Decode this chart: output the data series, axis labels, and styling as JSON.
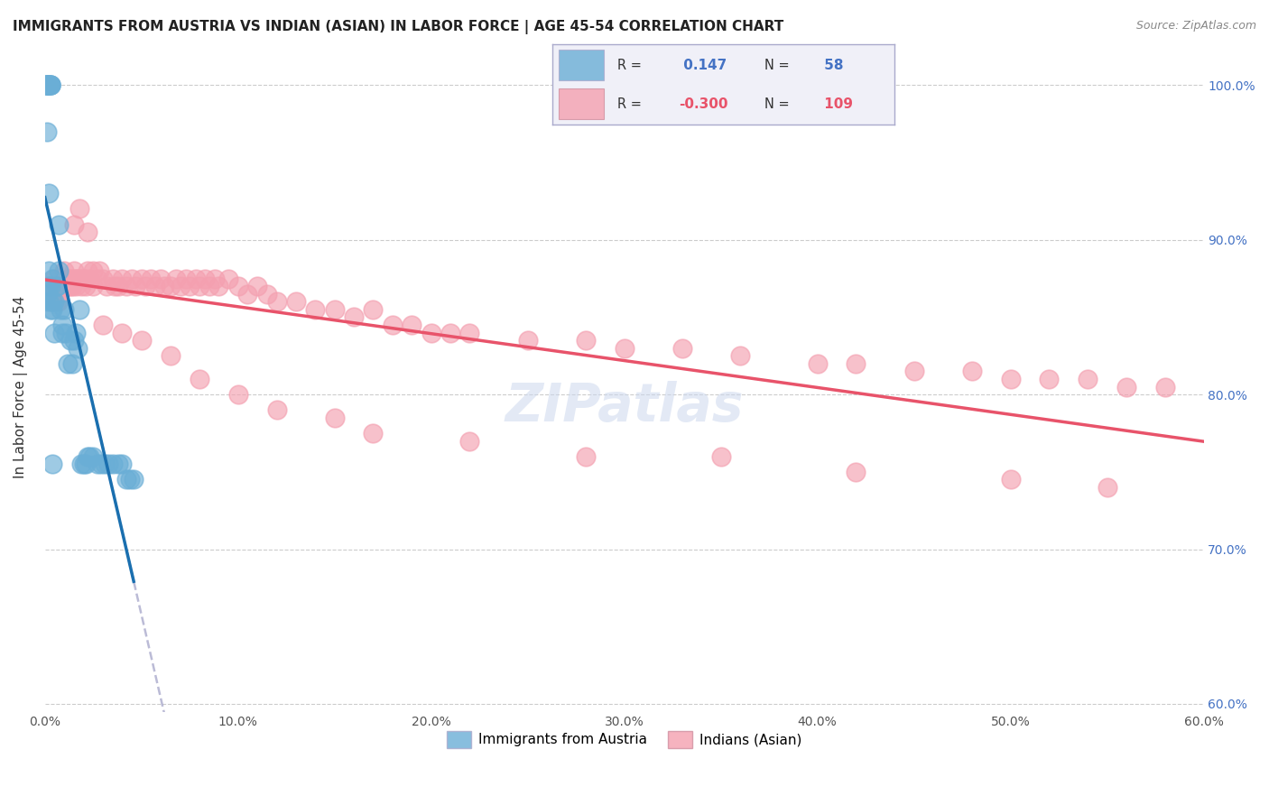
{
  "title": "IMMIGRANTS FROM AUSTRIA VS INDIAN (ASIAN) IN LABOR FORCE | AGE 45-54 CORRELATION CHART",
  "source": "Source: ZipAtlas.com",
  "ylabel": "In Labor Force | Age 45-54",
  "ylabel_right_ticks": [
    "100.0%",
    "90.0%",
    "80.0%",
    "70.0%",
    "60.0%"
  ],
  "ylabel_right_vals": [
    1.0,
    0.9,
    0.8,
    0.7,
    0.6
  ],
  "xlim": [
    0.0,
    0.6
  ],
  "ylim": [
    0.595,
    1.015
  ],
  "austria_r": 0.147,
  "austria_n": 58,
  "indian_r": -0.3,
  "indian_n": 109,
  "austria_color": "#6aaed6",
  "indian_color": "#f4a0b0",
  "austria_line_color": "#1a6faf",
  "indian_line_color": "#e8536a",
  "austria_x": [
    0.001,
    0.001,
    0.001,
    0.001,
    0.001,
    0.001,
    0.001,
    0.002,
    0.002,
    0.002,
    0.002,
    0.002,
    0.003,
    0.003,
    0.003,
    0.003,
    0.004,
    0.004,
    0.004,
    0.005,
    0.005,
    0.006,
    0.006,
    0.007,
    0.007,
    0.008,
    0.009,
    0.009,
    0.01,
    0.011,
    0.012,
    0.013,
    0.014,
    0.015,
    0.016,
    0.017,
    0.018,
    0.019,
    0.02,
    0.021,
    0.022,
    0.023,
    0.025,
    0.027,
    0.029,
    0.031,
    0.033,
    0.035,
    0.038,
    0.04,
    0.042,
    0.044,
    0.046,
    0.001,
    0.002,
    0.003,
    0.003,
    0.004
  ],
  "austria_y": [
    1.0,
    1.0,
    1.0,
    1.0,
    1.0,
    1.0,
    0.97,
    1.0,
    1.0,
    0.93,
    0.88,
    0.87,
    1.0,
    1.0,
    0.87,
    0.855,
    0.86,
    0.875,
    0.855,
    0.86,
    0.84,
    0.87,
    0.87,
    0.91,
    0.88,
    0.855,
    0.84,
    0.845,
    0.855,
    0.84,
    0.82,
    0.835,
    0.82,
    0.835,
    0.84,
    0.83,
    0.855,
    0.755,
    0.755,
    0.755,
    0.76,
    0.76,
    0.76,
    0.755,
    0.755,
    0.755,
    0.755,
    0.755,
    0.755,
    0.755,
    0.745,
    0.745,
    0.745,
    0.865,
    0.86,
    1.0,
    1.0,
    0.755
  ],
  "indian_x": [
    0.002,
    0.004,
    0.004,
    0.005,
    0.006,
    0.006,
    0.007,
    0.008,
    0.008,
    0.009,
    0.01,
    0.01,
    0.011,
    0.012,
    0.012,
    0.013,
    0.013,
    0.014,
    0.015,
    0.015,
    0.016,
    0.016,
    0.017,
    0.018,
    0.019,
    0.02,
    0.02,
    0.021,
    0.022,
    0.023,
    0.025,
    0.025,
    0.027,
    0.028,
    0.03,
    0.032,
    0.035,
    0.036,
    0.038,
    0.04,
    0.042,
    0.045,
    0.047,
    0.05,
    0.052,
    0.055,
    0.057,
    0.06,
    0.062,
    0.065,
    0.068,
    0.07,
    0.073,
    0.075,
    0.078,
    0.08,
    0.083,
    0.085,
    0.088,
    0.09,
    0.095,
    0.1,
    0.105,
    0.11,
    0.115,
    0.12,
    0.13,
    0.14,
    0.15,
    0.16,
    0.17,
    0.18,
    0.19,
    0.2,
    0.21,
    0.22,
    0.25,
    0.28,
    0.3,
    0.33,
    0.36,
    0.4,
    0.42,
    0.45,
    0.48,
    0.5,
    0.52,
    0.54,
    0.56,
    0.58,
    0.015,
    0.018,
    0.022,
    0.03,
    0.04,
    0.05,
    0.065,
    0.08,
    0.1,
    0.12,
    0.15,
    0.17,
    0.22,
    0.28,
    0.35,
    0.42,
    0.5,
    0.55,
    0.007
  ],
  "indian_y": [
    0.87,
    0.86,
    0.87,
    0.875,
    0.87,
    0.86,
    0.865,
    0.87,
    0.87,
    0.87,
    0.87,
    0.88,
    0.87,
    0.875,
    0.87,
    0.87,
    0.875,
    0.87,
    0.875,
    0.88,
    0.875,
    0.87,
    0.875,
    0.875,
    0.87,
    0.875,
    0.875,
    0.87,
    0.88,
    0.875,
    0.87,
    0.88,
    0.875,
    0.88,
    0.875,
    0.87,
    0.875,
    0.87,
    0.87,
    0.875,
    0.87,
    0.875,
    0.87,
    0.875,
    0.87,
    0.875,
    0.87,
    0.875,
    0.87,
    0.87,
    0.875,
    0.87,
    0.875,
    0.87,
    0.875,
    0.87,
    0.875,
    0.87,
    0.875,
    0.87,
    0.875,
    0.87,
    0.865,
    0.87,
    0.865,
    0.86,
    0.86,
    0.855,
    0.855,
    0.85,
    0.855,
    0.845,
    0.845,
    0.84,
    0.84,
    0.84,
    0.835,
    0.835,
    0.83,
    0.83,
    0.825,
    0.82,
    0.82,
    0.815,
    0.815,
    0.81,
    0.81,
    0.81,
    0.805,
    0.805,
    0.91,
    0.92,
    0.905,
    0.845,
    0.84,
    0.835,
    0.825,
    0.81,
    0.8,
    0.79,
    0.785,
    0.775,
    0.77,
    0.76,
    0.76,
    0.75,
    0.745,
    0.74,
    0.86
  ],
  "watermark": "ZIPatlas",
  "grid_color": "#cccccc",
  "background_color": "#ffffff"
}
